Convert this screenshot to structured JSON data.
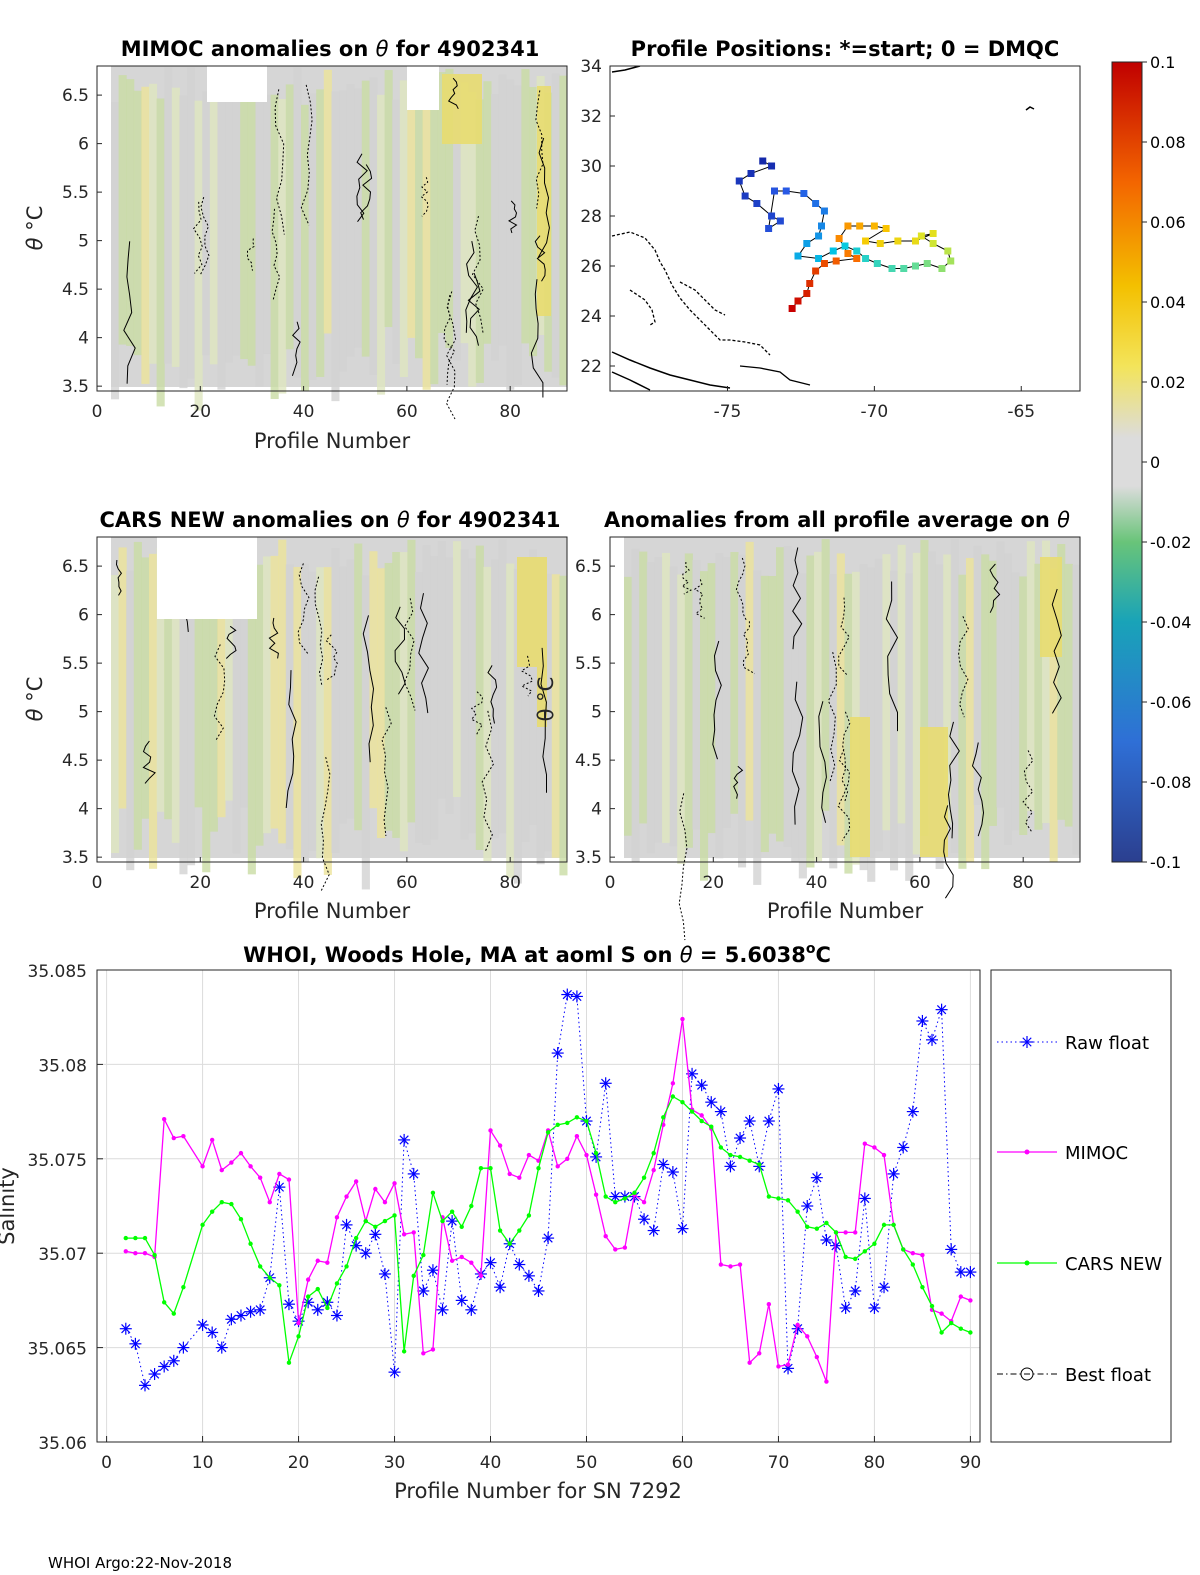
{
  "panels": {
    "mimoc": {
      "title_prefix": "MIMOC anomalies on ",
      "title_theta": "θ",
      "title_suffix": "  for 4902341",
      "xlabel": "Profile Number",
      "ylabel_theta": "θ",
      "ylabel_unit": " °C",
      "xticks": [
        "0",
        "20",
        "40",
        "60",
        "80"
      ],
      "yticks": [
        "3.5",
        "4",
        "4.5",
        "5",
        "5.5",
        "6",
        "6.5"
      ]
    },
    "cars": {
      "title_prefix": "CARS NEW anomalies on ",
      "title_theta": "θ",
      "title_suffix": " for 4902341",
      "xlabel": "Profile Number",
      "ylabel_theta": "θ",
      "ylabel_unit": " °C",
      "xticks": [
        "0",
        "20",
        "40",
        "60",
        "80"
      ],
      "yticks": [
        "3.5",
        "4",
        "4.5",
        "5",
        "5.5",
        "6",
        "6.5"
      ]
    },
    "allprof": {
      "title_prefix": "Anomalies from all profile average on ",
      "title_theta": "θ",
      "xlabel": "Profile Number",
      "overlay_label": "θ °C",
      "xticks": [
        "0",
        "20",
        "40",
        "60",
        "80"
      ],
      "yticks": [
        "3.5",
        "4",
        "4.5",
        "5",
        "5.5",
        "6",
        "6.5"
      ]
    },
    "map": {
      "title": "Profile Positions: *=start; 0 = DMQC",
      "xticks": [
        "-75",
        "-70",
        "-65"
      ],
      "yticks": [
        "22",
        "24",
        "26",
        "28",
        "30",
        "32",
        "34"
      ]
    }
  },
  "colorbar": {
    "ticks": [
      "0.1",
      "0.08",
      "0.06",
      "0.04",
      "0.02",
      "0",
      "-0.02",
      "-0.04",
      "-0.06",
      "-0.08",
      "-0.1"
    ]
  },
  "chart_data": [
    {
      "type": "scatter",
      "title": "Profile Positions: *=start; 0 = DMQC",
      "xlim": [
        -79,
        -63
      ],
      "ylim": [
        21,
        34
      ],
      "track": [
        {
          "lon": -73.8,
          "lat": 30.2
        },
        {
          "lon": -73.5,
          "lat": 30.0
        },
        {
          "lon": -74.2,
          "lat": 29.7
        },
        {
          "lon": -74.6,
          "lat": 29.4
        },
        {
          "lon": -74.4,
          "lat": 28.8
        },
        {
          "lon": -74.0,
          "lat": 28.5
        },
        {
          "lon": -73.5,
          "lat": 28.0
        },
        {
          "lon": -73.2,
          "lat": 27.8
        },
        {
          "lon": -73.6,
          "lat": 27.5
        },
        {
          "lon": -73.4,
          "lat": 29.0
        },
        {
          "lon": -73.0,
          "lat": 29.0
        },
        {
          "lon": -72.4,
          "lat": 28.9
        },
        {
          "lon": -72.0,
          "lat": 28.5
        },
        {
          "lon": -71.7,
          "lat": 28.2
        },
        {
          "lon": -71.8,
          "lat": 27.6
        },
        {
          "lon": -71.9,
          "lat": 27.2
        },
        {
          "lon": -72.3,
          "lat": 26.9
        },
        {
          "lon": -72.6,
          "lat": 26.4
        },
        {
          "lon": -71.9,
          "lat": 26.3
        },
        {
          "lon": -71.4,
          "lat": 26.6
        },
        {
          "lon": -71.0,
          "lat": 26.8
        },
        {
          "lon": -70.6,
          "lat": 26.6
        },
        {
          "lon": -70.3,
          "lat": 26.3
        },
        {
          "lon": -69.9,
          "lat": 26.1
        },
        {
          "lon": -69.4,
          "lat": 25.9
        },
        {
          "lon": -69.0,
          "lat": 25.9
        },
        {
          "lon": -68.6,
          "lat": 26.0
        },
        {
          "lon": -68.2,
          "lat": 26.1
        },
        {
          "lon": -67.7,
          "lat": 25.9
        },
        {
          "lon": -67.4,
          "lat": 26.2
        },
        {
          "lon": -67.5,
          "lat": 26.6
        },
        {
          "lon": -68.0,
          "lat": 26.9
        },
        {
          "lon": -68.4,
          "lat": 27.2
        },
        {
          "lon": -68.0,
          "lat": 27.3
        },
        {
          "lon": -68.6,
          "lat": 27.0
        },
        {
          "lon": -69.2,
          "lat": 27.0
        },
        {
          "lon": -69.8,
          "lat": 26.9
        },
        {
          "lon": -70.3,
          "lat": 27.0
        },
        {
          "lon": -69.6,
          "lat": 27.5
        },
        {
          "lon": -70.0,
          "lat": 27.6
        },
        {
          "lon": -70.5,
          "lat": 27.6
        },
        {
          "lon": -70.9,
          "lat": 27.6
        },
        {
          "lon": -71.2,
          "lat": 27.1
        },
        {
          "lon": -70.9,
          "lat": 26.5
        },
        {
          "lon": -70.6,
          "lat": 26.3
        },
        {
          "lon": -71.3,
          "lat": 26.2
        },
        {
          "lon": -71.7,
          "lat": 26.1
        },
        {
          "lon": -72.0,
          "lat": 25.8
        },
        {
          "lon": -72.2,
          "lat": 25.3
        },
        {
          "lon": -72.3,
          "lat": 24.9
        },
        {
          "lon": -72.6,
          "lat": 24.6
        },
        {
          "lon": -72.8,
          "lat": 24.3
        }
      ]
    },
    {
      "type": "line",
      "title": "WHOI, Woods Hole, MA at aoml S on θ = 5.6038°C",
      "title_prefix": "WHOI, Woods Hole, MA at aoml S on ",
      "title_theta": "θ",
      "title_mid": " = 5.6038",
      "title_deg": "o",
      "title_unit": "C",
      "xlabel": "Profile Number for SN 7292",
      "ylabel": "Salinity",
      "xlim": [
        -1,
        91
      ],
      "ylim": [
        35.06,
        35.085
      ],
      "xticks": [
        "0",
        "10",
        "20",
        "30",
        "40",
        "50",
        "60",
        "70",
        "80",
        "90"
      ],
      "yticks": [
        "35.06",
        "35.065",
        "35.07",
        "35.075",
        "35.08",
        "35.085"
      ],
      "grid": true,
      "legend_position": "outside-right",
      "series": [
        {
          "name": "Raw float",
          "color": "#0000ff",
          "x": [
            2,
            3,
            4,
            5,
            6,
            7,
            8,
            10,
            11,
            12,
            13,
            14,
            15,
            16,
            17,
            18,
            19,
            20,
            21,
            22,
            23,
            24,
            25,
            26,
            27,
            28,
            29,
            30,
            31,
            32,
            33,
            34,
            35,
            36,
            37,
            38,
            39,
            40,
            41,
            42,
            43,
            44,
            45,
            46,
            47,
            48,
            49,
            50,
            51,
            52,
            53,
            54,
            55,
            56,
            57,
            58,
            59,
            60,
            61,
            62,
            63,
            64,
            65,
            66,
            67,
            68,
            69,
            70,
            71,
            72,
            73,
            74,
            75,
            76,
            77,
            78,
            79,
            80,
            81,
            82,
            83,
            84,
            85,
            86,
            87,
            88,
            89,
            90
          ],
          "values": [
            35.066,
            35.0652,
            35.063,
            35.0636,
            35.064,
            35.0643,
            35.065,
            35.0662,
            35.0658,
            35.065,
            35.0665,
            35.0667,
            35.0669,
            35.067,
            35.0687,
            35.0735,
            35.0673,
            35.0664,
            35.0674,
            35.067,
            35.0674,
            35.0667,
            35.0715,
            35.0704,
            35.07,
            35.071,
            35.0689,
            35.0637,
            35.076,
            35.0742,
            35.068,
            35.0691,
            35.067,
            35.0717,
            35.0675,
            35.067,
            35.0689,
            35.0695,
            35.0682,
            35.0705,
            35.0694,
            35.0688,
            35.068,
            35.0708,
            35.0806,
            35.0837,
            35.0836,
            35.077,
            35.0751,
            35.079,
            35.073,
            35.073,
            35.073,
            35.0718,
            35.0712,
            35.0747,
            35.0743,
            35.0713,
            35.0795,
            35.0789,
            35.078,
            35.0775,
            35.0746,
            35.0761,
            35.077,
            35.0746,
            35.077,
            35.0787,
            35.0639,
            35.066,
            35.0725,
            35.074,
            35.0707,
            35.0704,
            35.0671,
            35.068,
            35.0729,
            35.0671,
            35.0682,
            35.0742,
            35.0756,
            35.0775,
            35.0823,
            35.0813,
            35.0829,
            35.0702,
            35.069,
            35.069
          ]
        },
        {
          "name": "MIMOC",
          "color": "#ff00ff",
          "x": [
            2,
            3,
            4,
            5,
            6,
            7,
            8,
            10,
            11,
            12,
            13,
            14,
            15,
            16,
            17,
            18,
            19,
            20,
            21,
            22,
            23,
            24,
            25,
            26,
            27,
            28,
            29,
            30,
            31,
            32,
            33,
            34,
            35,
            36,
            37,
            38,
            39,
            40,
            41,
            42,
            43,
            44,
            45,
            46,
            47,
            48,
            49,
            50,
            51,
            52,
            53,
            54,
            55,
            56,
            57,
            58,
            59,
            60,
            61,
            62,
            63,
            64,
            65,
            66,
            67,
            68,
            69,
            70,
            71,
            72,
            73,
            74,
            75,
            76,
            77,
            78,
            79,
            80,
            81,
            82,
            83,
            84,
            85,
            86,
            87,
            88,
            89,
            90
          ],
          "values": [
            35.0701,
            35.07,
            35.07,
            35.0698,
            35.0771,
            35.0761,
            35.0762,
            35.0746,
            35.076,
            35.0744,
            35.0748,
            35.0753,
            35.0746,
            35.074,
            35.0727,
            35.0742,
            35.0739,
            35.0663,
            35.0686,
            35.0696,
            35.0695,
            35.0719,
            35.073,
            35.0738,
            35.0717,
            35.0734,
            35.0727,
            35.0737,
            35.071,
            35.0711,
            35.0647,
            35.0649,
            35.0719,
            35.0696,
            35.0698,
            35.0695,
            35.0688,
            35.0765,
            35.0757,
            35.0742,
            35.074,
            35.0752,
            35.0749,
            35.0765,
            35.0746,
            35.075,
            35.0762,
            35.0752,
            35.0731,
            35.0709,
            35.0702,
            35.0703,
            35.0731,
            35.0727,
            35.0744,
            35.0768,
            35.079,
            35.0824,
            35.0776,
            35.0773,
            35.0766,
            35.0694,
            35.0693,
            35.0694,
            35.0642,
            35.0647,
            35.0673,
            35.064,
            35.0641,
            35.0662,
            35.0656,
            35.0645,
            35.0632,
            35.0711,
            35.0711,
            35.0711,
            35.0758,
            35.0756,
            35.0752,
            35.0715,
            35.0702,
            35.07,
            35.0699,
            35.067,
            35.0668,
            35.0664,
            35.0677,
            35.0675
          ]
        },
        {
          "name": "CARS NEW",
          "color": "#00ff00",
          "x": [
            2,
            3,
            4,
            5,
            6,
            7,
            8,
            10,
            11,
            12,
            13,
            14,
            15,
            16,
            17,
            18,
            19,
            20,
            21,
            22,
            23,
            24,
            25,
            26,
            27,
            28,
            29,
            30,
            31,
            32,
            33,
            34,
            35,
            36,
            37,
            38,
            39,
            40,
            41,
            42,
            43,
            44,
            45,
            46,
            47,
            48,
            49,
            50,
            51,
            52,
            53,
            54,
            55,
            56,
            57,
            58,
            59,
            60,
            61,
            62,
            63,
            64,
            65,
            66,
            67,
            68,
            69,
            70,
            71,
            72,
            73,
            74,
            75,
            76,
            77,
            78,
            79,
            80,
            81,
            82,
            83,
            84,
            85,
            86,
            87,
            88,
            89,
            90
          ],
          "values": [
            35.0708,
            35.0708,
            35.0708,
            35.0699,
            35.0674,
            35.0668,
            35.0682,
            35.0715,
            35.0722,
            35.0727,
            35.0726,
            35.0718,
            35.0705,
            35.0693,
            35.0687,
            35.0683,
            35.0642,
            35.0656,
            35.0677,
            35.0681,
            35.0671,
            35.0684,
            35.0693,
            35.0708,
            35.0717,
            35.0714,
            35.0717,
            35.072,
            35.0648,
            35.0688,
            35.0699,
            35.0732,
            35.0717,
            35.0722,
            35.0714,
            35.0725,
            35.0745,
            35.0745,
            35.0712,
            35.0705,
            35.0712,
            35.072,
            35.0745,
            35.0764,
            35.0768,
            35.0769,
            35.0772,
            35.077,
            35.0753,
            35.073,
            35.0727,
            35.0729,
            35.0732,
            35.074,
            35.0753,
            35.0772,
            35.0783,
            35.078,
            35.0775,
            35.077,
            35.0767,
            35.0756,
            35.0752,
            35.0751,
            35.0749,
            35.0747,
            35.073,
            35.0729,
            35.0728,
            35.0722,
            35.0714,
            35.0713,
            35.0716,
            35.0711,
            35.0698,
            35.0697,
            35.0701,
            35.0705,
            35.0715,
            35.0715,
            35.0702,
            35.0694,
            35.0682,
            35.0672,
            35.0658,
            35.0663,
            35.066,
            35.0658
          ]
        },
        {
          "name": "Best float",
          "color": "#000000",
          "x": [],
          "values": []
        }
      ]
    }
  ],
  "footer": "WHOI Argo:22-Nov-2018"
}
